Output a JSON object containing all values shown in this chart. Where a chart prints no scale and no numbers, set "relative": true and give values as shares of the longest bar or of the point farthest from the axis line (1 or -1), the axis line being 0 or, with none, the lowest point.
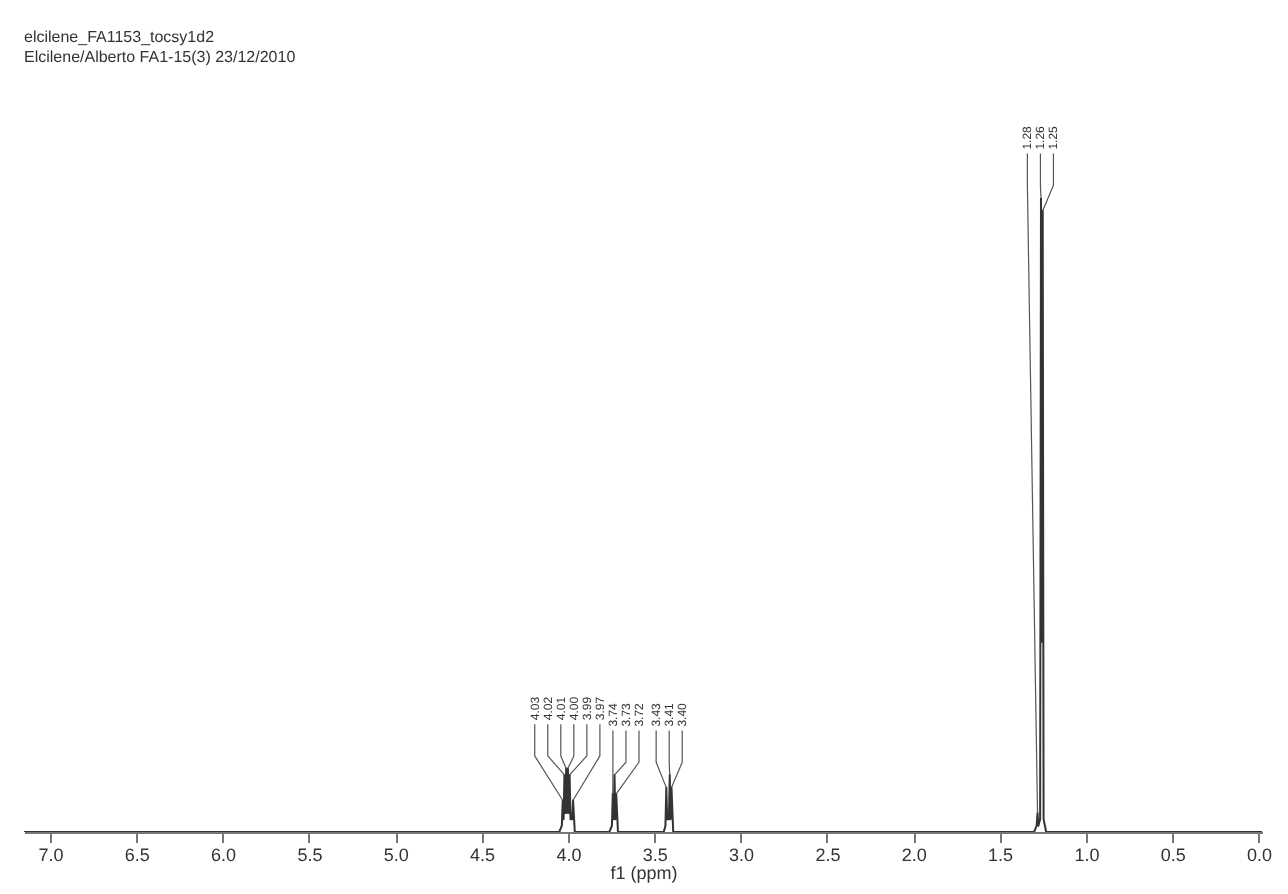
{
  "chart_data": {
    "type": "line",
    "title": "elcilene_FA1153_tocsy1d2",
    "subtitle": "Elcilene/Alberto FA1-15(3) 23/12/2010",
    "xlabel": "f1 (ppm)",
    "relative": true,
    "grid": false,
    "marker": "none",
    "line_style": "solid",
    "xlim": [
      7.15,
      -0.02
    ],
    "xticks": [
      {
        "value": 7,
        "label": "7.0"
      },
      {
        "value": 6.5,
        "label": "6.5"
      },
      {
        "value": 6,
        "label": "6.0"
      },
      {
        "value": 5.5,
        "label": "5.5"
      },
      {
        "value": 5,
        "label": "5.0"
      },
      {
        "value": 4.5,
        "label": "4.5"
      },
      {
        "value": 4,
        "label": "4.0"
      },
      {
        "value": 3.5,
        "label": "3.5"
      },
      {
        "value": 3,
        "label": "3.0"
      },
      {
        "value": 2.5,
        "label": "2.5"
      },
      {
        "value": 2,
        "label": "2.0"
      },
      {
        "value": 1.5,
        "label": "1.5"
      },
      {
        "value": 1,
        "label": "1.0"
      },
      {
        "value": 0.5,
        "label": "0.5"
      },
      {
        "value": 0,
        "label": "0.0"
      }
    ],
    "series": [
      {
        "color": "#333333",
        "x": [
          7.15,
          4.05,
          4.035,
          4.03,
          4.025,
          4.02,
          4.015,
          4.01,
          4.005,
          4.0,
          3.995,
          3.99,
          3.985,
          3.975,
          3.97,
          3.96,
          3.76,
          3.745,
          3.74,
          3.735,
          3.73,
          3.725,
          3.72,
          3.71,
          3.445,
          3.435,
          3.43,
          3.425,
          3.415,
          3.41,
          3.405,
          3.4,
          3.39,
          1.3,
          1.285,
          1.28,
          1.275,
          1.265,
          1.26,
          1.255,
          1.25,
          1.245,
          1.23,
          -0.02
        ],
        "values": [
          0,
          0,
          0.01,
          0.05,
          0.02,
          0.09,
          0.03,
          0.1,
          0.03,
          0.1,
          0.03,
          0.09,
          0.02,
          0.02,
          0.05,
          0,
          0,
          0.01,
          0.06,
          0.02,
          0.09,
          0.02,
          0.06,
          0,
          0,
          0.01,
          0.07,
          0.02,
          0.02,
          0.09,
          0.02,
          0.07,
          0,
          0,
          0.01,
          0.03,
          0.01,
          0.02,
          1,
          0.3,
          0.98,
          0.02,
          0,
          0
        ]
      }
    ],
    "annotations": [
      {
        "text": "4.03",
        "x": 4.03,
        "y": 0.05
      },
      {
        "text": "4.02",
        "x": 4.02,
        "y": 0.09
      },
      {
        "text": "4.01",
        "x": 4.01,
        "y": 0.1
      },
      {
        "text": "4.00",
        "x": 4.0,
        "y": 0.1
      },
      {
        "text": "3.99",
        "x": 3.99,
        "y": 0.09
      },
      {
        "text": "3.97",
        "x": 3.97,
        "y": 0.05
      },
      {
        "text": "3.74",
        "x": 3.74,
        "y": 0.06
      },
      {
        "text": "3.73",
        "x": 3.73,
        "y": 0.09
      },
      {
        "text": "3.72",
        "x": 3.72,
        "y": 0.06
      },
      {
        "text": "3.43",
        "x": 3.43,
        "y": 0.07
      },
      {
        "text": "3.41",
        "x": 3.41,
        "y": 0.09
      },
      {
        "text": "3.40",
        "x": 3.4,
        "y": 0.07
      },
      {
        "text": "1.28",
        "x": 1.28,
        "y": 0.03
      },
      {
        "text": "1.26",
        "x": 1.26,
        "y": 1
      },
      {
        "text": "1.25",
        "x": 1.25,
        "y": 0.98
      }
    ]
  }
}
